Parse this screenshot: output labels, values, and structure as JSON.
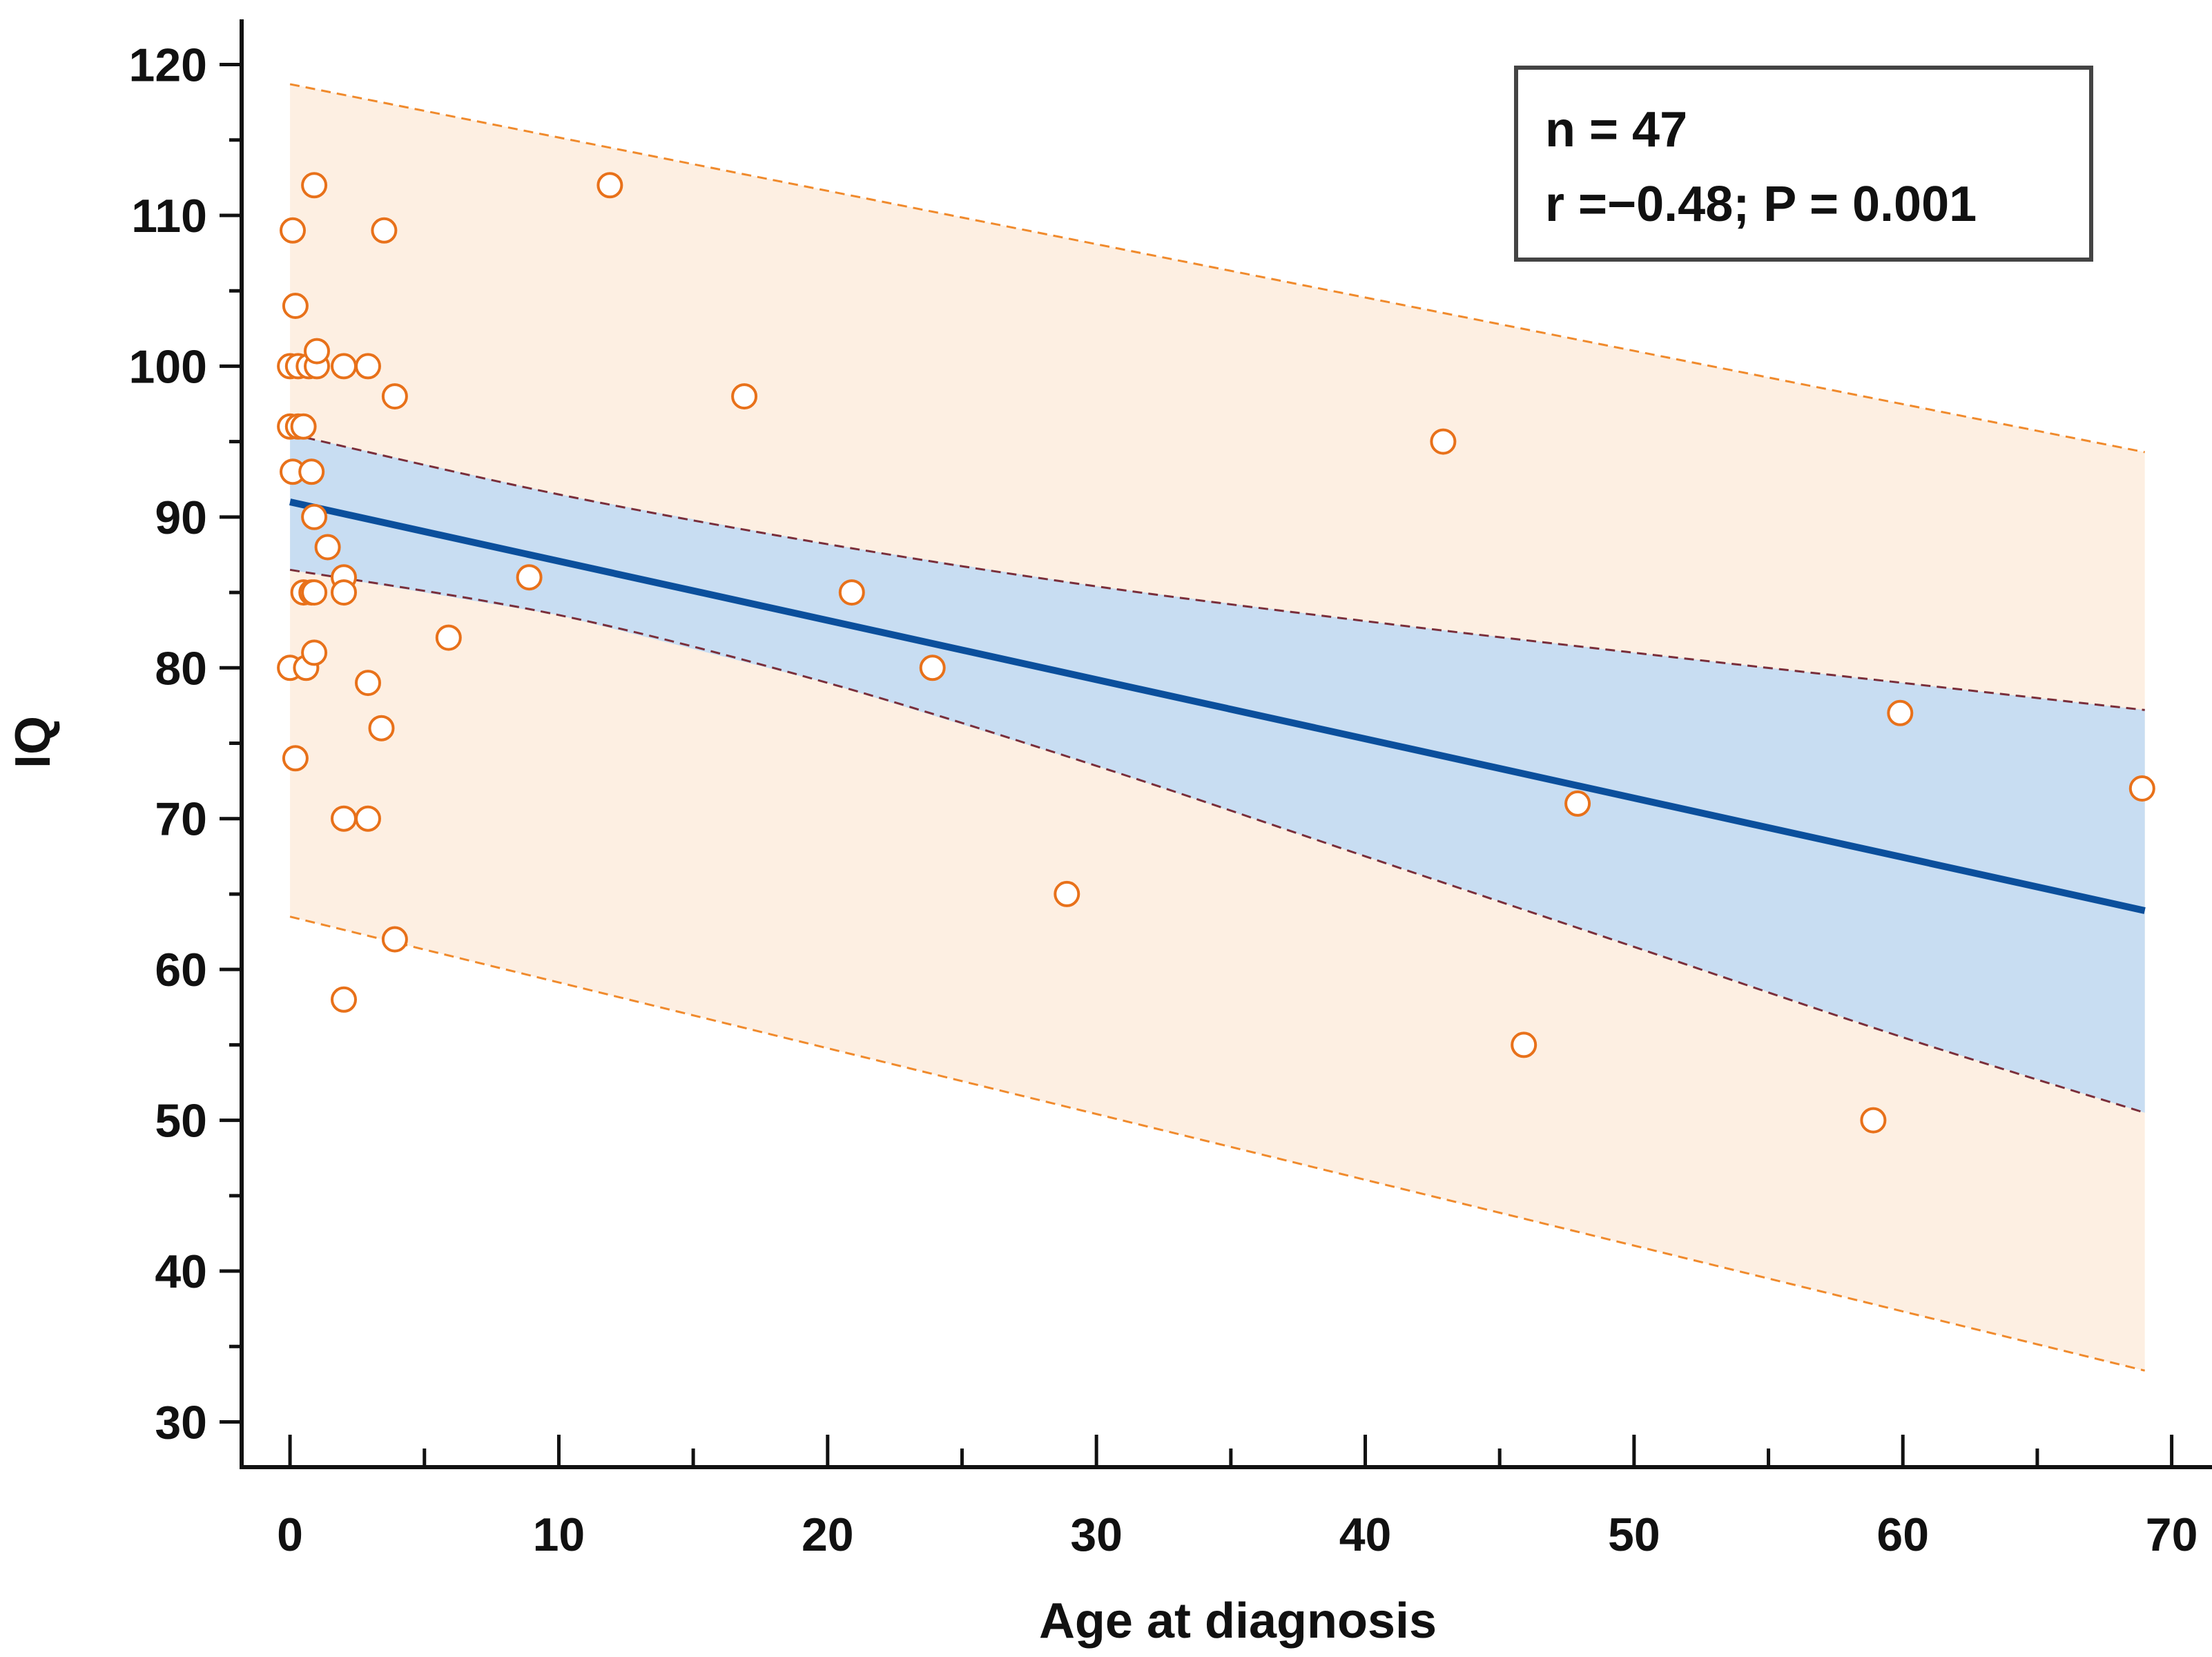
{
  "chart_data": {
    "type": "scatter",
    "xlabel": "Age at diagnosis",
    "ylabel": "IQ",
    "xlim": [
      -1.8,
      71.5
    ],
    "ylim": [
      27,
      123
    ],
    "x_ticks": [
      0,
      10,
      20,
      30,
      40,
      50,
      60,
      70
    ],
    "y_ticks": [
      30,
      40,
      50,
      60,
      70,
      80,
      90,
      100,
      110,
      120
    ],
    "grid": false,
    "stats": {
      "n_label": "n = 47",
      "r_label": "r =−0.48; P = 0.001"
    },
    "points": [
      {
        "x": 0,
        "y": 100
      },
      {
        "x": 0,
        "y": 96
      },
      {
        "x": 0,
        "y": 80
      },
      {
        "x": 0.1,
        "y": 93
      },
      {
        "x": 0.1,
        "y": 109
      },
      {
        "x": 0.2,
        "y": 104
      },
      {
        "x": 0.2,
        "y": 74
      },
      {
        "x": 0.3,
        "y": 100
      },
      {
        "x": 0.3,
        "y": 96
      },
      {
        "x": 0.5,
        "y": 96
      },
      {
        "x": 0.5,
        "y": 85
      },
      {
        "x": 0.6,
        "y": 80
      },
      {
        "x": 0.7,
        "y": 100
      },
      {
        "x": 0.8,
        "y": 93
      },
      {
        "x": 0.8,
        "y": 85
      },
      {
        "x": 0.9,
        "y": 85
      },
      {
        "x": 0.9,
        "y": 90
      },
      {
        "x": 0.9,
        "y": 112
      },
      {
        "x": 0.9,
        "y": 81
      },
      {
        "x": 1.0,
        "y": 100
      },
      {
        "x": 1.0,
        "y": 101
      },
      {
        "x": 1.4,
        "y": 88
      },
      {
        "x": 2.0,
        "y": 100
      },
      {
        "x": 2.0,
        "y": 86
      },
      {
        "x": 2.0,
        "y": 85
      },
      {
        "x": 2.0,
        "y": 70
      },
      {
        "x": 2.0,
        "y": 58
      },
      {
        "x": 2.9,
        "y": 100
      },
      {
        "x": 2.9,
        "y": 79
      },
      {
        "x": 2.9,
        "y": 70
      },
      {
        "x": 3.4,
        "y": 76
      },
      {
        "x": 3.5,
        "y": 109
      },
      {
        "x": 3.9,
        "y": 98
      },
      {
        "x": 3.9,
        "y": 62
      },
      {
        "x": 5.9,
        "y": 82
      },
      {
        "x": 8.9,
        "y": 86
      },
      {
        "x": 11.9,
        "y": 112
      },
      {
        "x": 16.9,
        "y": 98
      },
      {
        "x": 20.9,
        "y": 85
      },
      {
        "x": 23.9,
        "y": 80
      },
      {
        "x": 28.9,
        "y": 65
      },
      {
        "x": 42.9,
        "y": 95
      },
      {
        "x": 45.9,
        "y": 55
      },
      {
        "x": 47.9,
        "y": 71
      },
      {
        "x": 58.9,
        "y": 50
      },
      {
        "x": 59.9,
        "y": 77
      },
      {
        "x": 68.9,
        "y": 72
      }
    ],
    "regression": {
      "x": [
        0,
        69
      ],
      "y": [
        91.0,
        63.9
      ]
    },
    "confidence_band": {
      "x": [
        0,
        10,
        20,
        30,
        40,
        50,
        60,
        69
      ],
      "upper": [
        95.5,
        91.5,
        88.2,
        85.4,
        83.1,
        81.0,
        79.0,
        77.2
      ],
      "lower": [
        86.5,
        83.5,
        79.0,
        73.5,
        67.5,
        61.5,
        55.5,
        50.5
      ]
    },
    "prediction_band": {
      "x": [
        0,
        69
      ],
      "upper": [
        118.7,
        94.3
      ],
      "lower": [
        63.5,
        33.4
      ]
    },
    "colors": {
      "marker_edge": "#e8711a",
      "marker_fill": "#ffffff",
      "regression_line": "#0b4f9c",
      "confidence_fill": "#c8ddf2",
      "confidence_line": "#7a2e3a",
      "prediction_fill": "#fdefe2",
      "prediction_line": "#f08a2c",
      "axis": "#111111",
      "stats_box_border": "#444444"
    }
  }
}
